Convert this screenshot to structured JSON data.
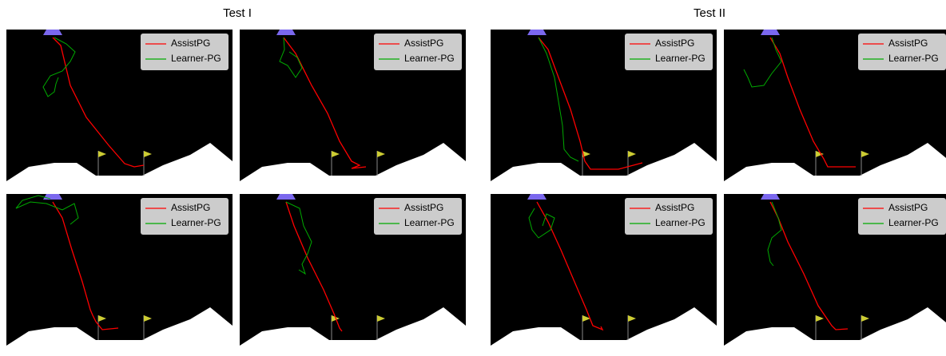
{
  "groups": [
    {
      "title": "Test I",
      "panels": [
        {
          "legend": [
            "AssistPG",
            "Learner-PG"
          ]
        },
        {
          "legend": [
            "AssistPG",
            "Learner-PG"
          ]
        },
        {
          "legend": [
            "AssistPG",
            "Learner-PG"
          ]
        },
        {
          "legend": [
            "AssistPG",
            "Learner-PG"
          ]
        }
      ]
    },
    {
      "title": "Test II",
      "panels": [
        {
          "legend": [
            "AssistPG",
            "Learner-PG"
          ]
        },
        {
          "legend": [
            "AssistPG",
            "Learner-PG"
          ]
        },
        {
          "legend": [
            "AssistPG",
            "Learner-PG"
          ]
        },
        {
          "legend": [
            "AssistPG",
            "Learner-PG"
          ]
        }
      ]
    }
  ]
}
